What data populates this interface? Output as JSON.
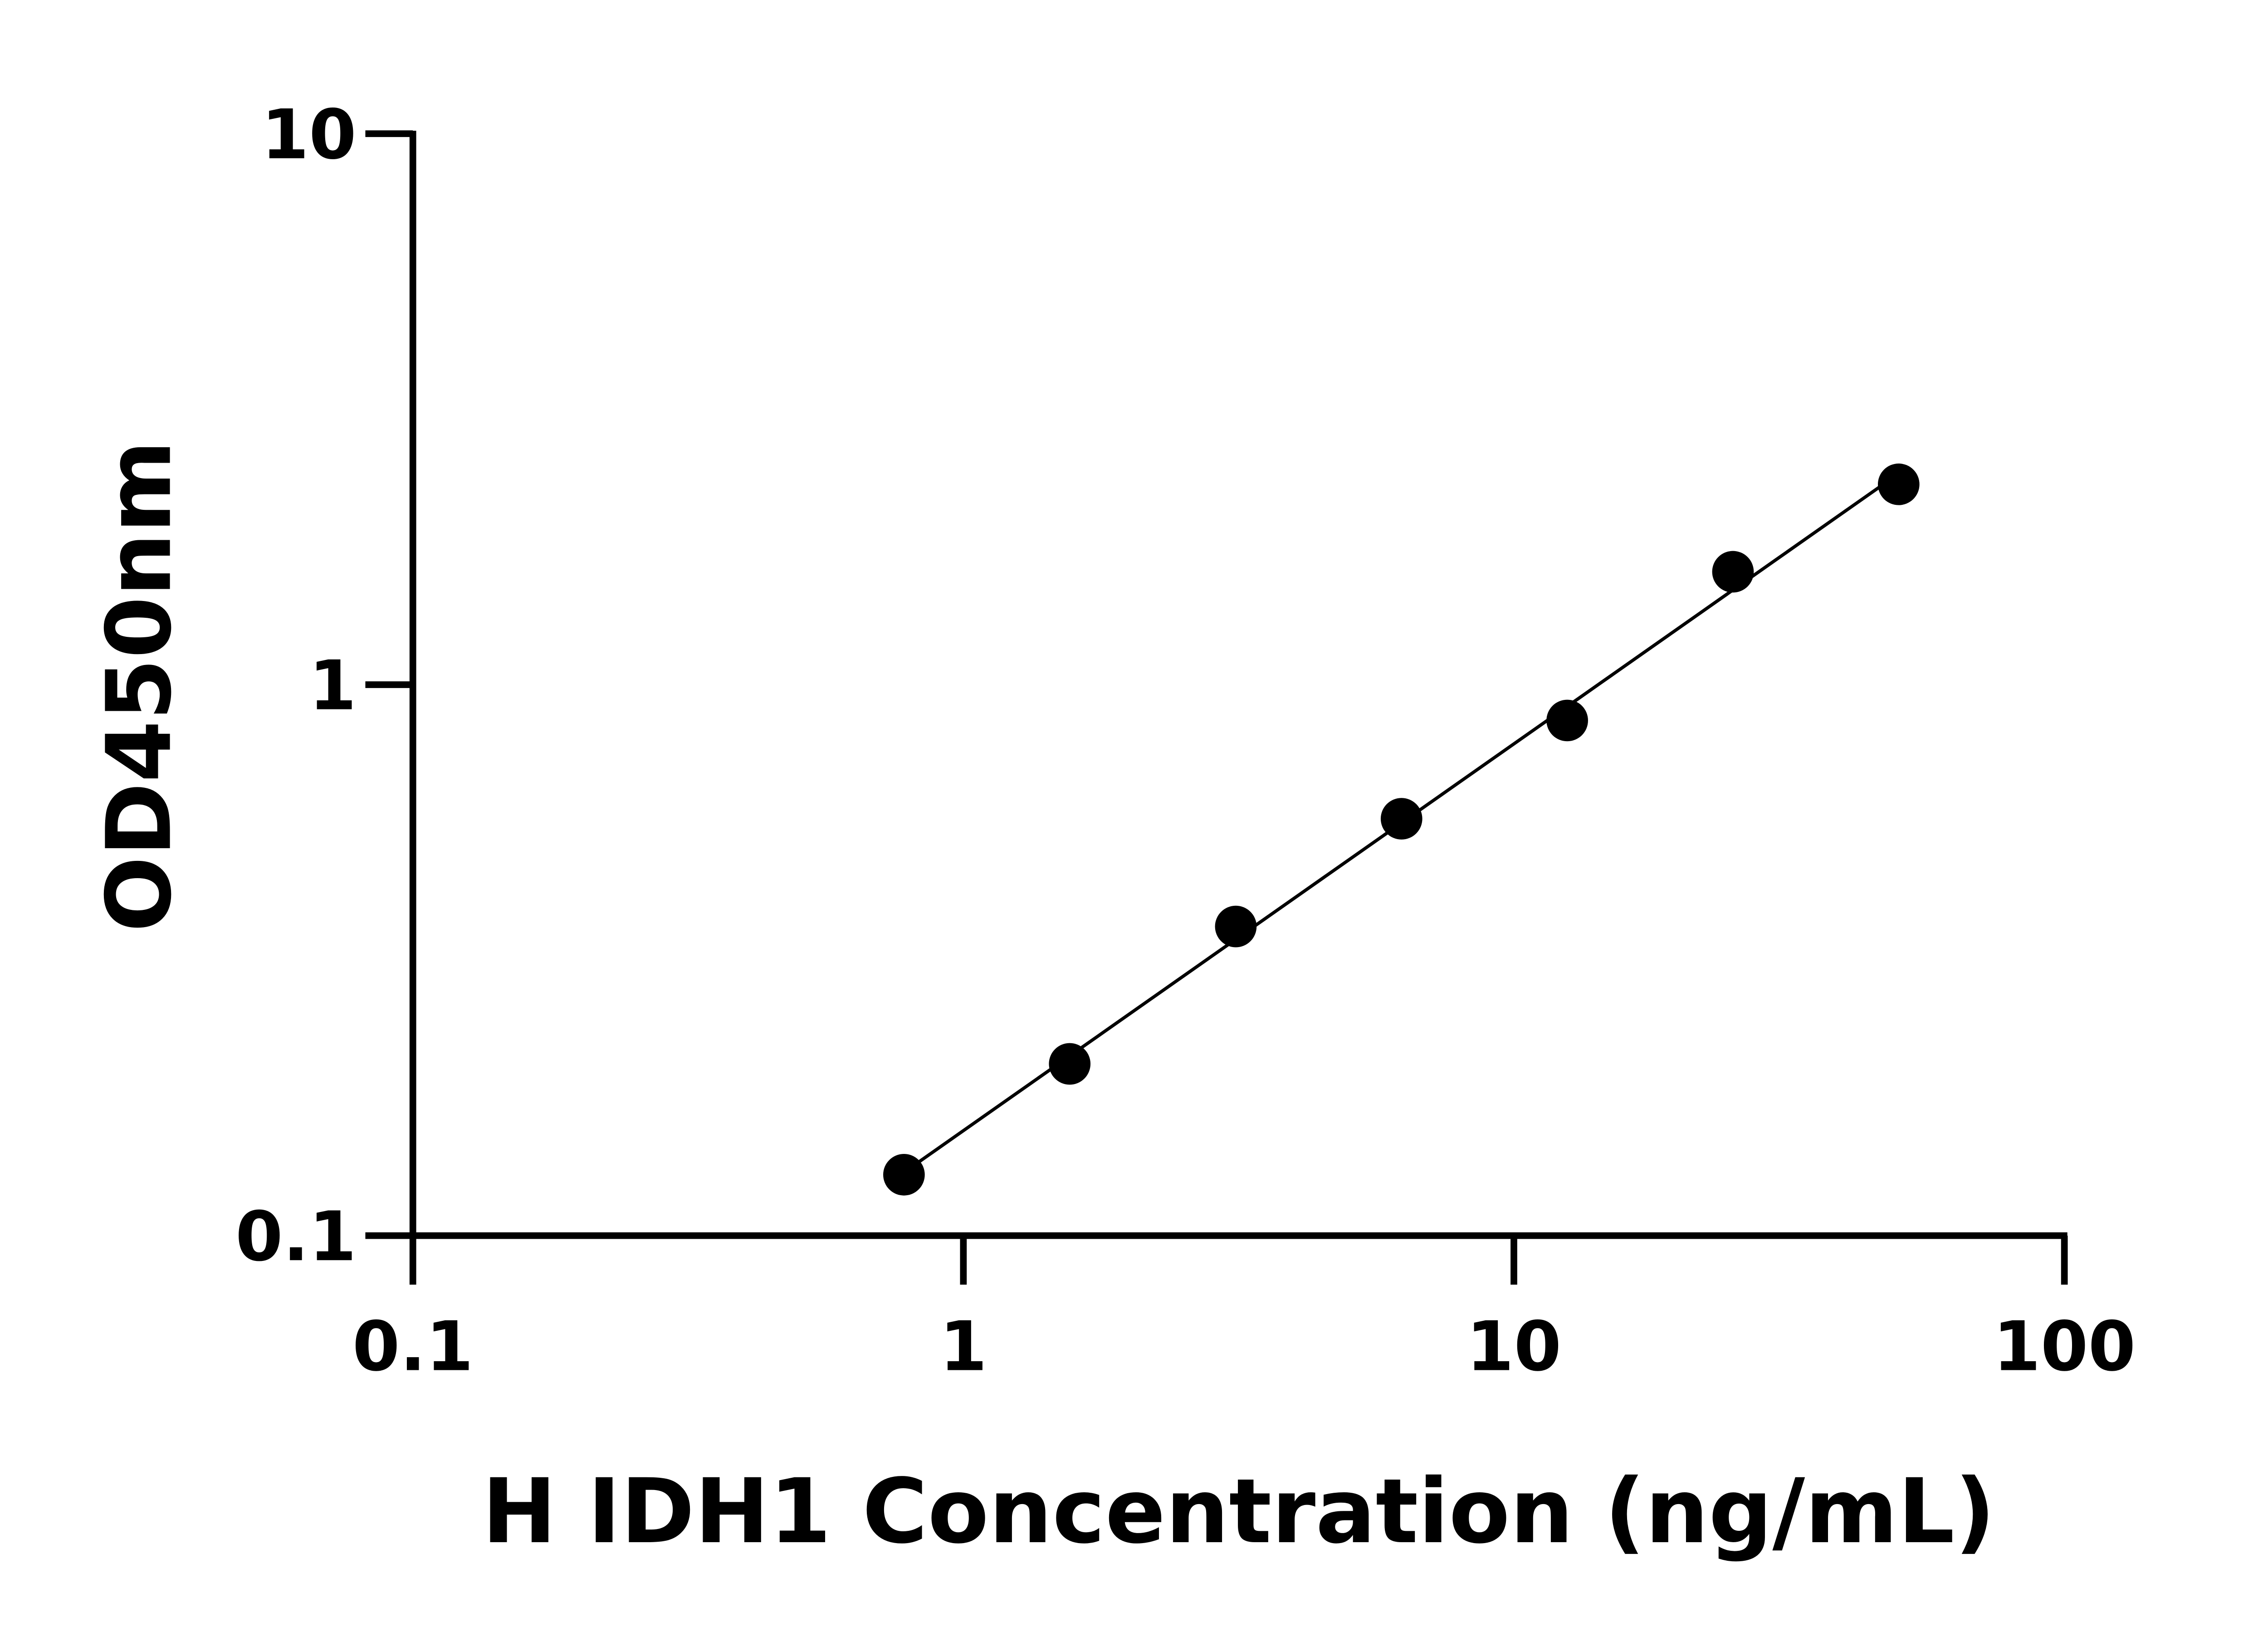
{
  "chart_data": {
    "type": "scatter",
    "xlabel": "H IDH1 Concentration (ng/mL)",
    "ylabel": "OD450nm",
    "x": [
      0.78,
      1.56,
      3.125,
      6.25,
      12.5,
      25,
      50
    ],
    "series": [
      {
        "color": "#000000",
        "values": [
          0.129,
          0.205,
          0.364,
          0.571,
          0.861,
          1.603,
          2.31
        ]
      }
    ],
    "xlim": [
      0.1,
      100
    ],
    "ylim": [
      0.1,
      10
    ],
    "xticks": [
      0.1,
      1,
      10,
      100
    ],
    "yticks": [
      0.1,
      1,
      10
    ],
    "xscale": "log",
    "yscale": "log",
    "grid": false
  }
}
